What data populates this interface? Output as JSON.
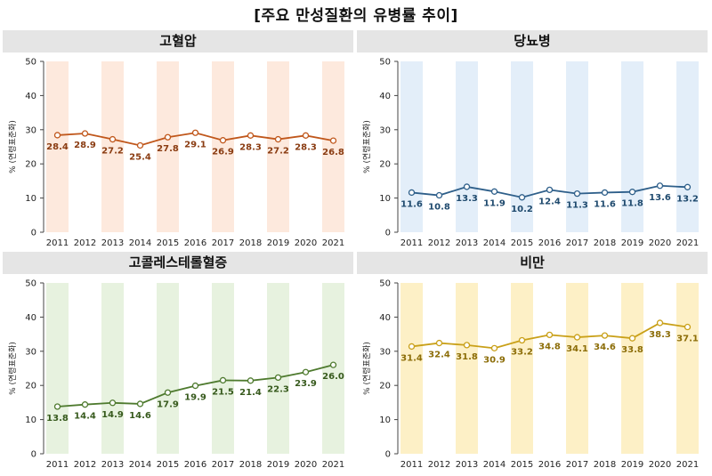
{
  "title": "[주요 만성질환의 유병률 추이]",
  "chart_data": [
    {
      "type": "line",
      "title": "고혈압",
      "categories": [
        "2011",
        "2012",
        "2013",
        "2014",
        "2015",
        "2016",
        "2017",
        "2018",
        "2019",
        "2020",
        "2021"
      ],
      "values": [
        28.4,
        28.9,
        27.2,
        25.4,
        27.8,
        29.1,
        26.9,
        28.3,
        27.2,
        28.3,
        26.8
      ],
      "ylabel": "% (연령표준화)",
      "ylim": [
        0,
        50
      ],
      "yticks": [
        0,
        10,
        20,
        30,
        40,
        50
      ],
      "line_color": "#c0571b",
      "label_color": "#8a3c12",
      "band_color": "#fde9dd"
    },
    {
      "type": "line",
      "title": "당뇨병",
      "categories": [
        "2011",
        "2012",
        "2013",
        "2014",
        "2015",
        "2016",
        "2017",
        "2018",
        "2019",
        "2020",
        "2021"
      ],
      "values": [
        11.6,
        10.8,
        13.3,
        11.9,
        10.2,
        12.4,
        11.3,
        11.6,
        11.8,
        13.6,
        13.2
      ],
      "ylabel": "% (연령표준화)",
      "ylim": [
        0,
        50
      ],
      "yticks": [
        0,
        10,
        20,
        30,
        40,
        50
      ],
      "line_color": "#2e5f8a",
      "label_color": "#1f4a6e",
      "band_color": "#e3eef9"
    },
    {
      "type": "line",
      "title": "고콜레스테롤혈증",
      "categories": [
        "2011",
        "2012",
        "2013",
        "2014",
        "2015",
        "2016",
        "2017",
        "2018",
        "2019",
        "2020",
        "2021"
      ],
      "values": [
        13.8,
        14.4,
        14.9,
        14.6,
        17.9,
        19.9,
        21.5,
        21.4,
        22.3,
        23.9,
        26.0
      ],
      "ylabel": "% (연령표준화)",
      "ylim": [
        0,
        50
      ],
      "yticks": [
        0,
        10,
        20,
        30,
        40,
        50
      ],
      "line_color": "#4e7a2e",
      "label_color": "#375a1d",
      "band_color": "#e7f2df"
    },
    {
      "type": "line",
      "title": "비만",
      "categories": [
        "2011",
        "2012",
        "2013",
        "2014",
        "2015",
        "2016",
        "2017",
        "2018",
        "2019",
        "2020",
        "2021"
      ],
      "values": [
        31.4,
        32.4,
        31.8,
        30.9,
        33.2,
        34.8,
        34.1,
        34.6,
        33.8,
        38.3,
        37.1
      ],
      "ylabel": "% (연령표준화)",
      "ylim": [
        0,
        50
      ],
      "yticks": [
        0,
        10,
        20,
        30,
        40,
        50
      ],
      "line_color": "#c9a018",
      "label_color": "#8c6d08",
      "band_color": "#fdf0c6"
    }
  ]
}
